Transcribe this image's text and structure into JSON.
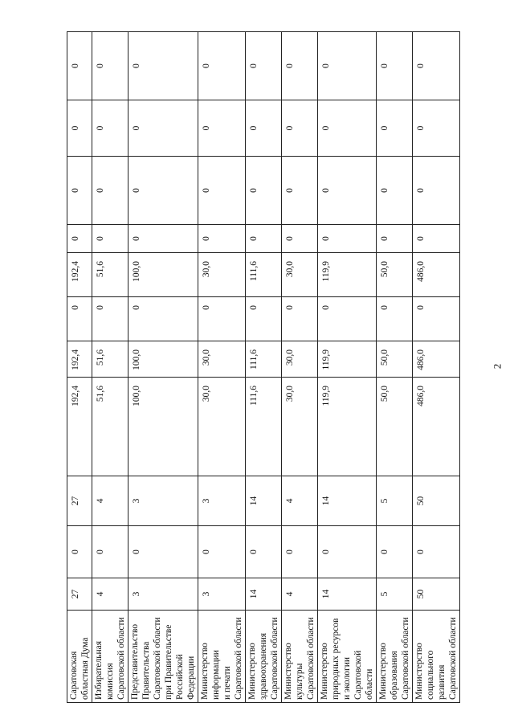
{
  "page_number": "2",
  "rows": [
    {
      "name": [
        "Саратовская",
        "областная Дума"
      ],
      "values": [
        "27",
        "0",
        "27",
        "192,4",
        "192,4",
        "0",
        "192,4",
        "0",
        "0",
        "0",
        "0"
      ]
    },
    {
      "name": [
        "Избирательная",
        "комиссия",
        "Саратовской области"
      ],
      "values": [
        "4",
        "0",
        "4",
        "51,6",
        "51,6",
        "0",
        "51,6",
        "0",
        "0",
        "0",
        "0"
      ]
    },
    {
      "name": [
        "Представительство",
        "Правительства",
        "Саратовской области",
        "при Правительстве",
        "Российской",
        "Федерации"
      ],
      "values": [
        "3",
        "0",
        "3",
        "100,0",
        "100,0",
        "0",
        "100,0",
        "0",
        "0",
        "0",
        "0"
      ]
    },
    {
      "name": [
        "Министерство",
        "информации",
        "и печати",
        "Саратовской области"
      ],
      "values": [
        "3",
        "0",
        "3",
        "30,0",
        "30,0",
        "0",
        "30,0",
        "0",
        "0",
        "0",
        "0"
      ]
    },
    {
      "name": [
        "Министерство",
        "здравоохранения",
        "Саратовской области"
      ],
      "values": [
        "14",
        "0",
        "14",
        "111,6",
        "111,6",
        "0",
        "111,6",
        "0",
        "0",
        "0",
        "0"
      ]
    },
    {
      "name": [
        "Министерство",
        "культуры",
        "Саратовской области"
      ],
      "values": [
        "4",
        "0",
        "4",
        "30,0",
        "30,0",
        "0",
        "30,0",
        "0",
        "0",
        "0",
        "0"
      ]
    },
    {
      "name": [
        "Министерство",
        "природных ресурсов",
        "и экологии",
        "Саратовской",
        "области"
      ],
      "values": [
        "14",
        "0",
        "14",
        "119,9",
        "119,9",
        "0",
        "119,9",
        "0",
        "0",
        "0",
        "0"
      ]
    },
    {
      "name": [
        "Министерство",
        "образования",
        "Саратовской области"
      ],
      "values": [
        "5",
        "0",
        "5",
        "50,0",
        "50,0",
        "0",
        "50,0",
        "0",
        "0",
        "0",
        "0"
      ]
    },
    {
      "name": [
        "Министерство",
        "социального",
        "развития",
        "Саратовской области"
      ],
      "values": [
        "50",
        "0",
        "50",
        "486,0",
        "486,0",
        "0",
        "486,0",
        "0",
        "0",
        "0",
        "0"
      ]
    }
  ]
}
